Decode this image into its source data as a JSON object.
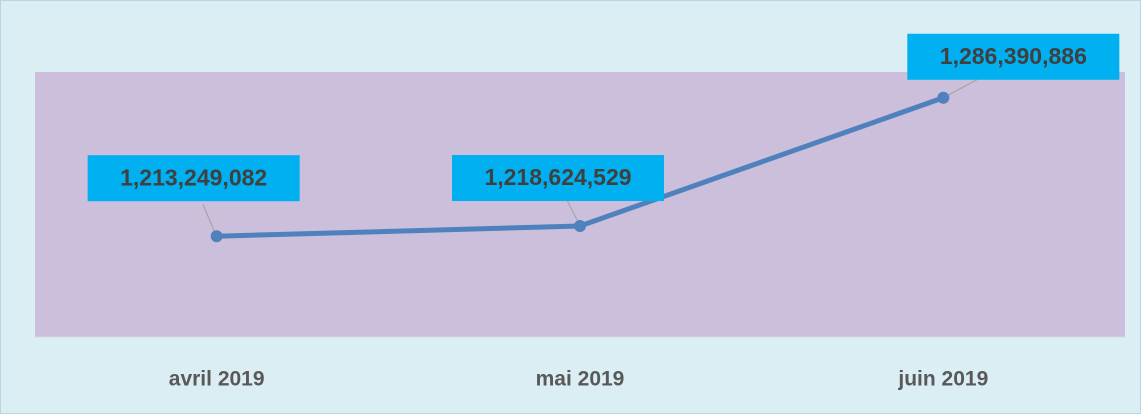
{
  "chart_data": {
    "type": "line",
    "categories": [
      "avril 2019",
      "mai 2019",
      "juin 2019"
    ],
    "series": [
      {
        "color": "#4f81bd",
        "values": [
          1213249082,
          1218624529,
          1286390886
        ],
        "value_labels": [
          "1,213,249,082",
          "1,218,624,529",
          "1,286,390,886"
        ]
      }
    ],
    "ylim": [
      1160000000,
      1300000000
    ],
    "label_color": "#00b0f0"
  }
}
